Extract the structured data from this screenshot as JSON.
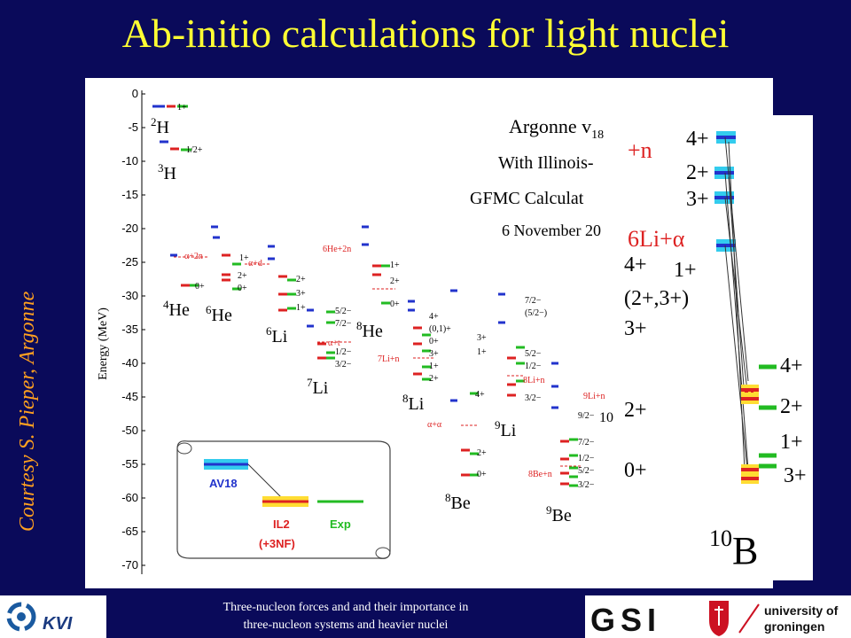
{
  "title": "Ab-initio calculations for light nuclei",
  "courtesy": "Courtesy S. Pieper, Argonne",
  "footer": {
    "line1": "Three-nucleon forces and and their importance in",
    "line2": "three-nucleon systems and heavier nuclei"
  },
  "logos": {
    "kvi": "KVI",
    "gsi": "GSI",
    "rug_line1": "university of",
    "rug_line2": "groningen"
  },
  "figure": {
    "ylabel": "Energy (MeV)",
    "yticks": [
      "0",
      "-5",
      "-10",
      "-15",
      "-20",
      "-25",
      "-30",
      "-35",
      "-40",
      "-45",
      "-50",
      "-55",
      "-60",
      "-65",
      "-70"
    ],
    "header1": "Argonne v",
    "header1_sub": "18",
    "header2": "With Illinois-",
    "header3": "GFMC Calculat",
    "header4": "6 November 20",
    "nuclei": {
      "h2_mass": "2",
      "h2": "H",
      "h3_mass": "3",
      "h3": "H",
      "he4_mass": "4",
      "he4": "He",
      "he6_mass": "6",
      "he6": "He",
      "li6_mass": "6",
      "li6": "Li",
      "li7_mass": "7",
      "li7": "Li",
      "he8_mass": "8",
      "he8": "He",
      "li8_mass": "8",
      "li8": "Li",
      "be8_mass": "8",
      "be8": "Be",
      "li9_mass": "9",
      "li9": "Li",
      "be9_mass": "9",
      "be9": "Be",
      "b10_cut": "10"
    },
    "spins": {
      "h2_1": "1+",
      "h3_12": "1/2+",
      "he4_0": "0+",
      "he6_1": "1+",
      "he6_2": "2+",
      "he6_0": "0+",
      "li6_2": "2+",
      "li6_3": "3+",
      "li6_1": "1+",
      "li7_52": "5/2−",
      "li7_72": "7/2−",
      "li7_12": "1/2−",
      "li7_32": "3/2−",
      "he8_1": "1+",
      "he8_2": "2+",
      "he8_0": "0+",
      "li8_4": "4+",
      "li8_01": "(0,1)+",
      "li8_0": "0+",
      "li8_3": "3+",
      "li8_1": "1+",
      "li8_2": "2+",
      "be8_4": "4+",
      "be8_3": "3+",
      "be8_1": "1+",
      "be8_2": "2+",
      "be8_0": "0+",
      "li9_72": "7/2−",
      "li9_52p": "(5/2−)",
      "li9_52": "5/2−",
      "li9_12": "1/2−",
      "li9_32": "3/2−",
      "be9_92": "9/2−",
      "be9_72": "7/2−",
      "be9_12": "1/2−",
      "be9_52": "5/2−",
      "be9_32": "3/2−"
    },
    "thresholds": {
      "he4_2n": "α+2n",
      "li6_ad": "α+d",
      "li7_at": "α+t",
      "he8_2n": "6He+2n",
      "li8_n": "7Li+n",
      "be8_aa": "α+α",
      "li9_n": "8Li+n",
      "be9_n": "8Be+n",
      "b10_n": "9Li+n"
    },
    "legend": {
      "av18": "AV18",
      "il2": "IL2",
      "il2_sub": "(+3NF)",
      "exp": "Exp"
    }
  },
  "inset": {
    "n": "+n",
    "li_a": "6Li+α",
    "spins": [
      "4+",
      "2+",
      "3+",
      "4+",
      "1+",
      "(2+,3+)",
      "3+",
      "4+",
      "2+",
      "1+",
      "3+",
      "2+",
      "0+"
    ],
    "nucleus_mass": "10",
    "nucleus": "B"
  }
}
